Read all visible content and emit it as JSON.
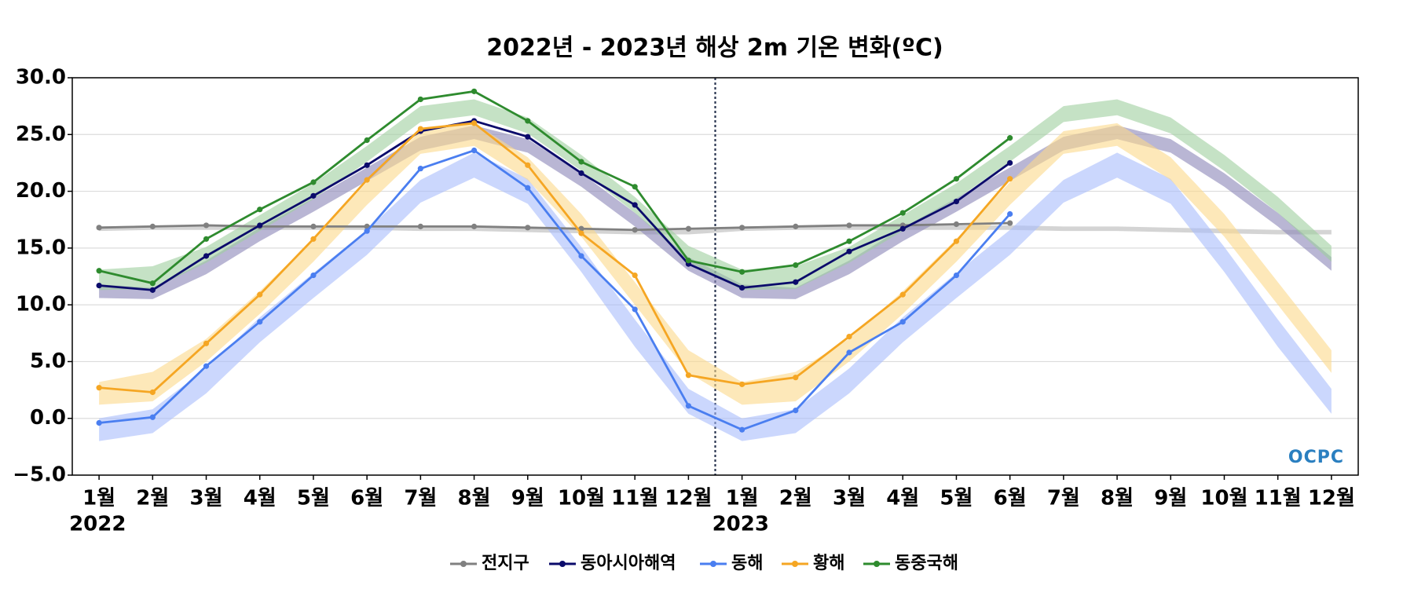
{
  "chart_data": {
    "type": "line",
    "title": "2022년 - 2023년 해상 2m 기온 변화(ºC)",
    "categories": [
      "1월",
      "2월",
      "3월",
      "4월",
      "5월",
      "6월",
      "7월",
      "8월",
      "9월",
      "10월",
      "11월",
      "12월",
      "1월",
      "2월",
      "3월",
      "4월",
      "5월",
      "6월",
      "7월",
      "8월",
      "9월",
      "10월",
      "11월",
      "12월"
    ],
    "years": [
      "2022",
      null,
      null,
      null,
      null,
      null,
      null,
      null,
      null,
      null,
      null,
      null,
      "2023",
      null,
      null,
      null,
      null,
      null,
      null,
      null,
      null,
      null,
      null,
      null
    ],
    "ylim": [
      -5,
      30
    ],
    "yticks": [
      {
        "value": -5,
        "label": "−5.0"
      },
      {
        "value": 0,
        "label": "0.0"
      },
      {
        "value": 5,
        "label": "5.0"
      },
      {
        "value": 10,
        "label": "10.0"
      },
      {
        "value": 15,
        "label": "15.0"
      },
      {
        "value": 20,
        "label": "20.0"
      },
      {
        "value": 25,
        "label": "25.0"
      },
      {
        "value": 30,
        "label": "30.0"
      }
    ],
    "grid": true,
    "legend": "bottom",
    "logo": "OCPC",
    "series": [
      {
        "name": "전지구",
        "color": "#808080",
        "band_color": "#b8b8b8",
        "values": [
          16.8,
          16.9,
          17.0,
          16.9,
          16.9,
          16.9,
          16.9,
          16.9,
          16.8,
          16.7,
          16.6,
          16.7,
          16.8,
          16.9,
          17.0,
          17.0,
          17.1,
          17.2,
          null,
          null,
          null,
          null,
          null,
          null
        ],
        "band_low": [
          16.5,
          16.6,
          16.6,
          16.6,
          16.6,
          16.6,
          16.5,
          16.5,
          16.4,
          16.3,
          16.2,
          16.2,
          16.5,
          16.6,
          16.6,
          16.6,
          16.6,
          16.6,
          16.5,
          16.5,
          16.4,
          16.3,
          16.2,
          16.2
        ],
        "band_high": [
          16.9,
          17.0,
          17.0,
          17.0,
          17.0,
          17.0,
          16.9,
          16.9,
          16.8,
          16.7,
          16.6,
          16.6,
          16.9,
          17.0,
          17.0,
          17.0,
          17.0,
          17.0,
          16.9,
          16.9,
          16.8,
          16.7,
          16.6,
          16.6
        ]
      },
      {
        "name": "동아시아해역",
        "color": "#0b0b6b",
        "band_color": "#8a86b8",
        "values": [
          11.7,
          11.3,
          14.3,
          17.0,
          19.6,
          22.3,
          25.3,
          26.2,
          24.8,
          21.6,
          18.8,
          13.6,
          11.5,
          12.0,
          14.7,
          16.7,
          19.1,
          22.5,
          null,
          null,
          null,
          null,
          null,
          null
        ],
        "band_low": [
          10.6,
          10.5,
          12.7,
          15.6,
          18.2,
          20.9,
          23.6,
          24.6,
          23.4,
          20.4,
          16.9,
          13.0,
          10.6,
          10.5,
          12.7,
          15.6,
          18.2,
          20.9,
          23.6,
          24.6,
          23.4,
          20.4,
          16.9,
          13.0
        ],
        "band_high": [
          11.8,
          11.5,
          13.9,
          16.8,
          19.4,
          22.1,
          24.8,
          25.8,
          24.6,
          21.6,
          18.1,
          14.2,
          11.8,
          11.5,
          13.9,
          16.8,
          19.4,
          22.1,
          24.8,
          25.8,
          24.6,
          21.6,
          18.1,
          14.2
        ]
      },
      {
        "name": "동해",
        "color": "#4a7ef0",
        "band_color": "#a9bdfb",
        "values": [
          -0.4,
          0.1,
          4.6,
          8.5,
          12.6,
          16.5,
          22.0,
          23.6,
          20.3,
          14.3,
          9.6,
          1.1,
          -1.0,
          0.7,
          5.8,
          8.5,
          12.6,
          18.0,
          null,
          null,
          null,
          null,
          null,
          null
        ],
        "band_low": [
          -2.0,
          -1.3,
          2.2,
          6.7,
          10.6,
          14.4,
          19.0,
          21.2,
          18.9,
          12.9,
          6.3,
          0.4,
          -2.0,
          -1.3,
          2.2,
          6.7,
          10.6,
          14.4,
          19.0,
          21.2,
          18.9,
          12.9,
          6.3,
          0.4
        ],
        "band_high": [
          0.0,
          0.8,
          4.4,
          8.9,
          12.8,
          16.6,
          21.0,
          23.4,
          21.1,
          15.1,
          8.7,
          2.6,
          0.0,
          0.8,
          4.4,
          8.9,
          12.8,
          16.6,
          21.0,
          23.4,
          21.1,
          15.1,
          8.7,
          2.6
        ]
      },
      {
        "name": "황해",
        "color": "#f5a623",
        "band_color": "#fcd88a",
        "values": [
          2.7,
          2.3,
          6.6,
          10.9,
          15.8,
          21.0,
          25.5,
          26.0,
          22.3,
          16.3,
          12.6,
          3.8,
          3.0,
          3.6,
          7.2,
          10.9,
          15.6,
          21.1,
          null,
          null,
          null,
          null,
          null,
          null
        ],
        "band_low": [
          1.2,
          1.5,
          5.0,
          9.2,
          13.8,
          18.8,
          23.3,
          24.0,
          21.0,
          16.0,
          10.0,
          4.0,
          1.2,
          1.5,
          5.0,
          9.2,
          13.8,
          18.8,
          23.3,
          24.0,
          21.0,
          16.0,
          10.0,
          4.0
        ],
        "band_high": [
          3.2,
          4.1,
          7.0,
          11.2,
          15.8,
          20.8,
          25.3,
          26.0,
          23.0,
          18.0,
          12.0,
          6.0,
          3.2,
          4.1,
          7.0,
          11.2,
          15.8,
          20.8,
          25.3,
          26.0,
          23.0,
          18.0,
          12.0,
          6.0
        ]
      },
      {
        "name": "동중국해",
        "color": "#2e8b2e",
        "band_color": "#9ecf9e",
        "values": [
          13.0,
          11.9,
          15.8,
          18.4,
          20.8,
          24.5,
          28.1,
          28.8,
          26.2,
          22.6,
          20.4,
          13.9,
          12.9,
          13.5,
          15.6,
          18.1,
          21.1,
          24.7,
          null,
          null,
          null,
          null,
          null,
          null
        ],
        "band_low": [
          11.3,
          11.4,
          13.7,
          16.5,
          19.3,
          22.6,
          26.1,
          26.7,
          25.1,
          21.8,
          18.1,
          13.8,
          11.3,
          11.4,
          13.7,
          16.5,
          19.3,
          22.6,
          26.1,
          26.7,
          25.1,
          21.8,
          18.1,
          13.8
        ],
        "band_high": [
          13.1,
          13.4,
          15.1,
          17.9,
          20.7,
          24.0,
          27.5,
          28.1,
          26.5,
          23.2,
          19.5,
          15.2,
          13.1,
          13.4,
          15.1,
          17.9,
          20.7,
          24.0,
          27.5,
          28.1,
          26.5,
          23.2,
          19.5,
          15.2
        ]
      }
    ]
  }
}
